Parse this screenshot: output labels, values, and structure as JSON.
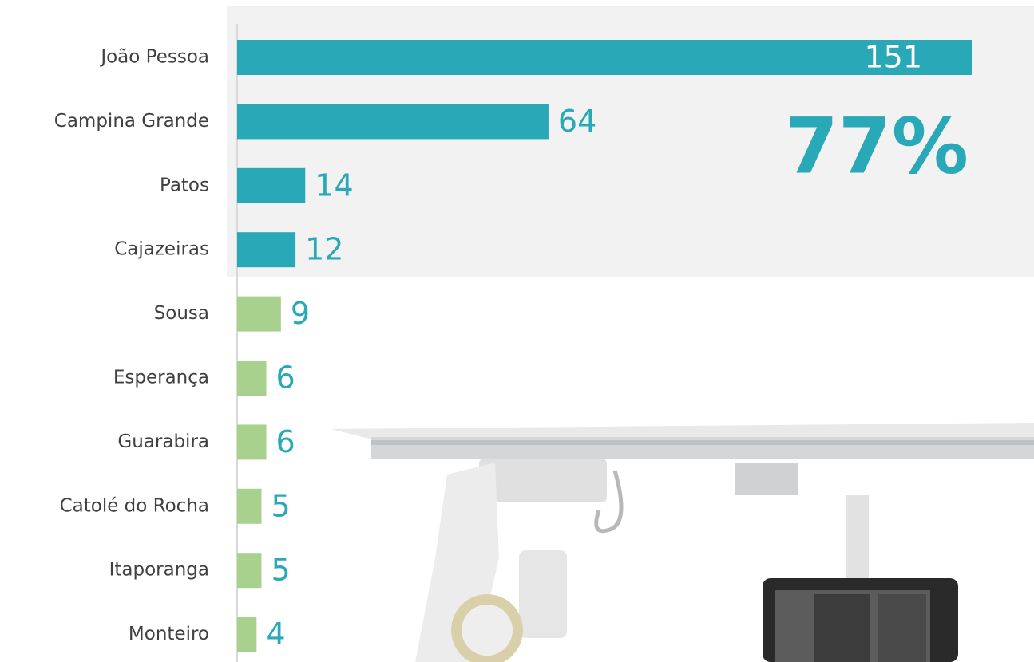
{
  "chart_data": {
    "type": "bar",
    "orientation": "horizontal",
    "categories": [
      "João Pessoa",
      "Campina Grande",
      "Patos",
      "Cajazeiras",
      "Sousa",
      "Esperança",
      "Guarabira",
      "Catolé do Rocha",
      "Itaporanga",
      "Monteiro"
    ],
    "values": [
      151,
      64,
      14,
      12,
      9,
      6,
      6,
      5,
      5,
      4
    ],
    "colors": [
      "#29a8b8",
      "#29a8b8",
      "#29a8b8",
      "#29a8b8",
      "#a9d18e",
      "#a9d18e",
      "#a9d18e",
      "#a9d18e",
      "#a9d18e",
      "#a9d18e"
    ],
    "label_color": "#29a8b8",
    "annotation": "77%"
  }
}
